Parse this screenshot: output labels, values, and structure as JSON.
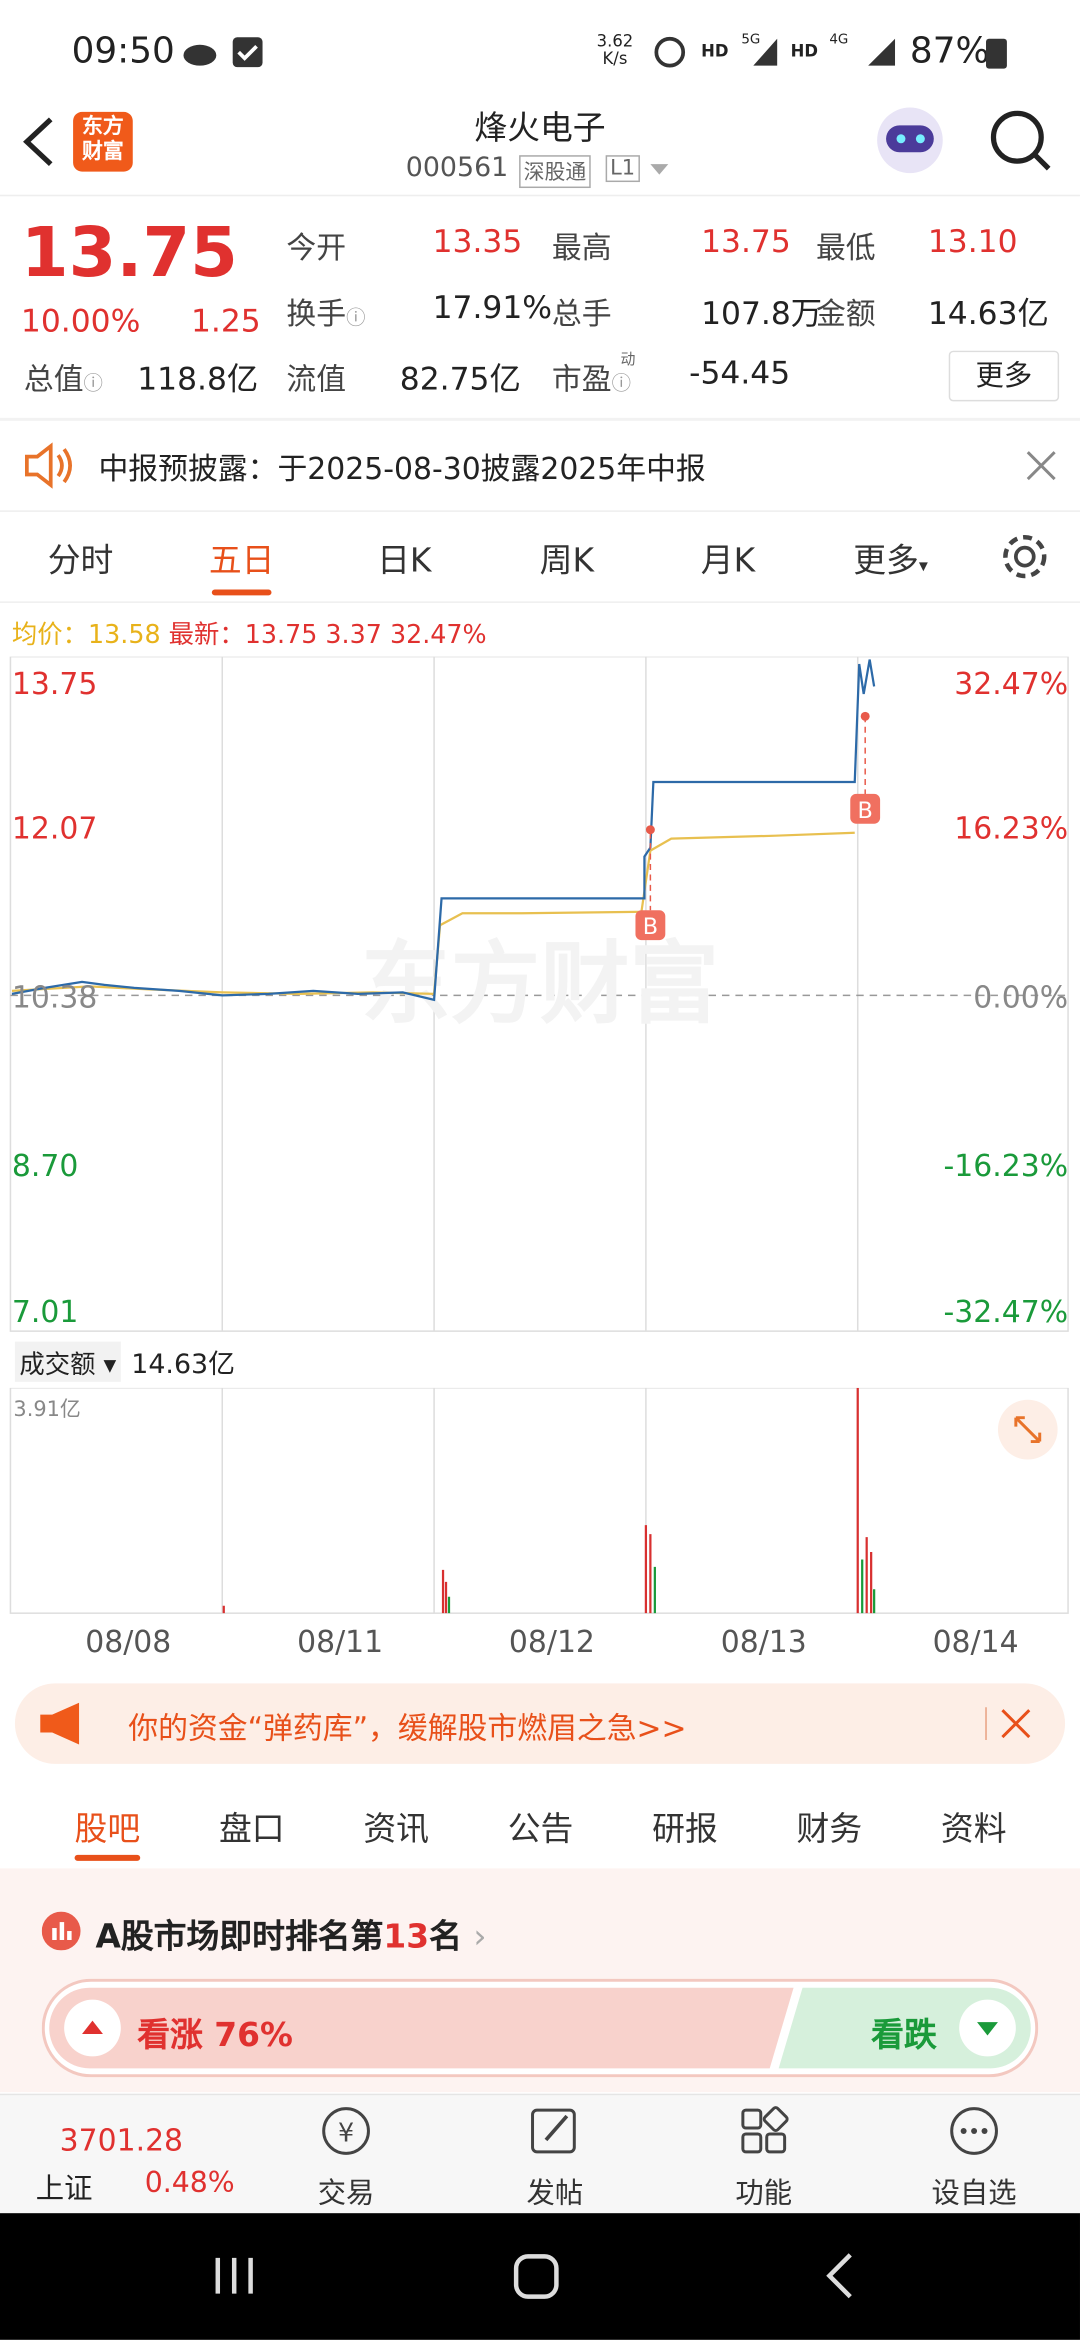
{
  "status_bar": {
    "time": "09:50",
    "speed": "3.62",
    "speed_unit": "K/s",
    "network": [
      "HD",
      "5G",
      "HD",
      "4G"
    ],
    "battery": "87%"
  },
  "header": {
    "logo": [
      "东方",
      "财富"
    ],
    "title": "烽火电子",
    "code": "000561",
    "tags": [
      "深股通",
      "L1"
    ]
  },
  "quote": {
    "price": "13.75",
    "change_pct": "10.00%",
    "change": "1.25",
    "fields": [
      {
        "label": "今开",
        "value": "13.35"
      },
      {
        "label": "最高",
        "value": "13.75"
      },
      {
        "label": "最低",
        "value": "13.10"
      },
      {
        "label": "换手",
        "value": "17.91%"
      },
      {
        "label": "总手",
        "value": "107.8万"
      },
      {
        "label": "金额",
        "value": "14.63亿"
      },
      {
        "label": "总值",
        "value": "118.8亿"
      },
      {
        "label": "流值",
        "value": "82.75亿"
      },
      {
        "label": "市盈",
        "value": "-54.45",
        "sup": "动"
      }
    ],
    "more": "更多"
  },
  "notice": "中报预披露：于2025-08-30披露2025年中报",
  "tabs": [
    "分时",
    "五日",
    "日K",
    "周K",
    "月K",
    "更多"
  ],
  "chart": {
    "avg_label": "均价：",
    "avg": "13.58",
    "latest_label": "最新：",
    "latest": "13.75",
    "change": "3.37",
    "change_pct": "32.47%",
    "left_axis": [
      "13.75",
      "12.07",
      "10.38",
      "8.70",
      "7.01"
    ],
    "right_axis": [
      "32.47%",
      "16.23%",
      "0.00%",
      "-16.23%",
      "-32.47%"
    ],
    "markers": [
      "B",
      "B"
    ],
    "watermark": "东方财富"
  },
  "volume": {
    "selector": "成交额",
    "total": "14.63亿",
    "max": "3.91亿",
    "dates": [
      "08/08",
      "08/11",
      "08/12",
      "08/13",
      "08/14"
    ]
  },
  "ad": "你的资金“弹药库”，缓解股市燃眉之急>>",
  "sub_tabs": [
    "股吧",
    "盘口",
    "资讯",
    "公告",
    "研报",
    "财务",
    "资料"
  ],
  "ranking": {
    "prefix": "A股市场即时排名第",
    "rank": "13",
    "suffix": "名",
    "bull": "看涨 76%",
    "bear": "看跌"
  },
  "bottom_nav": {
    "index_value": "3701.28",
    "index_name": "上证",
    "index_pct": "0.48%",
    "items": [
      "交易",
      "发帖",
      "功能",
      "设自选"
    ]
  }
}
